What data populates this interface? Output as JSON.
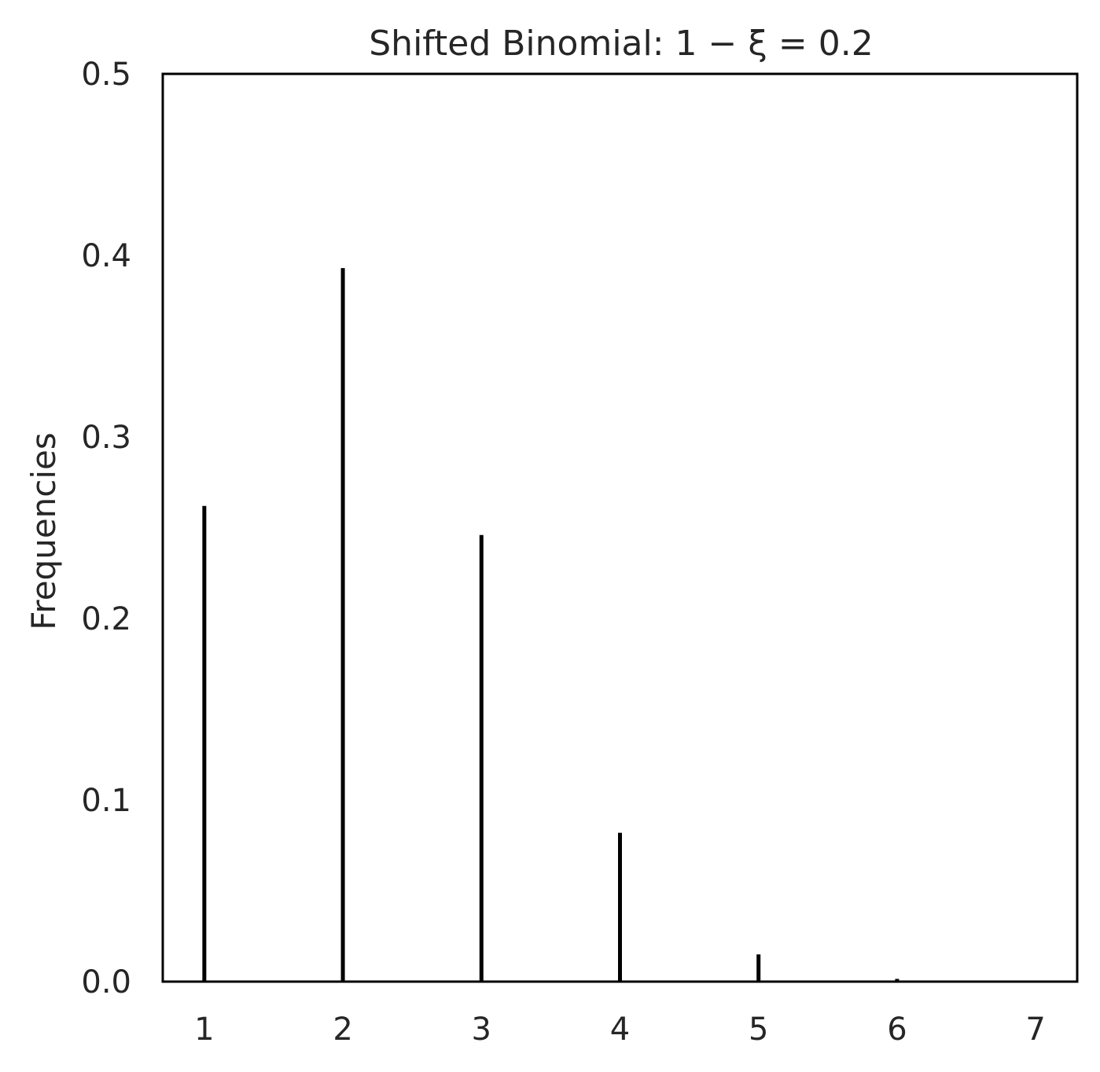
{
  "chart_data": {
    "type": "bar",
    "style": "stem",
    "title": "Shifted Binomial: 1 − ξ = 0.2",
    "xlabel": "",
    "ylabel": "Frequencies",
    "x": [
      1,
      2,
      3,
      4,
      5,
      6,
      7
    ],
    "values": [
      0.262,
      0.393,
      0.246,
      0.082,
      0.015,
      0.0015,
      0.0001
    ],
    "xlim": [
      0.7,
      7.3
    ],
    "ylim": [
      0.0,
      0.5
    ],
    "xticks": [
      "1",
      "2",
      "3",
      "4",
      "5",
      "6",
      "7"
    ],
    "yticks": [
      "0.0",
      "0.1",
      "0.2",
      "0.3",
      "0.4",
      "0.5"
    ],
    "grid": false,
    "legend": "none",
    "color": "#000000"
  }
}
